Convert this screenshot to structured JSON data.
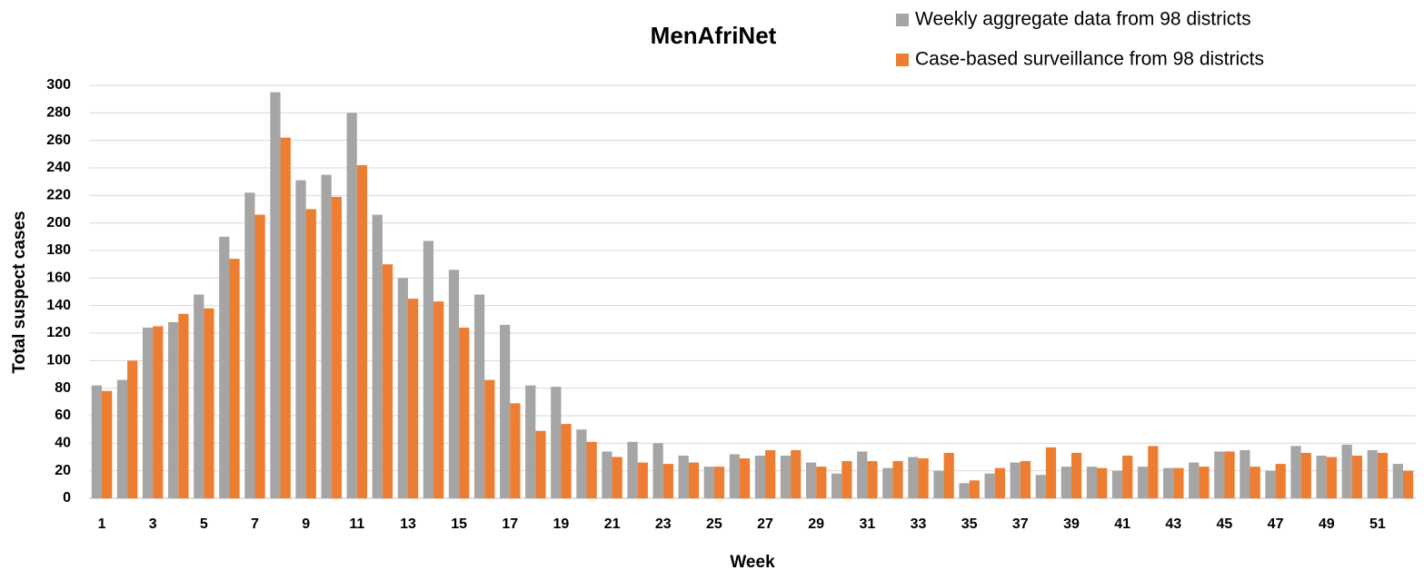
{
  "chart_data": {
    "type": "bar",
    "title": "MenAfriNet",
    "x_label": "Week",
    "y_label": "Total suspect cases",
    "categories": [
      1,
      null,
      3,
      null,
      5,
      null,
      7,
      null,
      9,
      null,
      11,
      null,
      13,
      null,
      15,
      null,
      17,
      null,
      19,
      null,
      21,
      null,
      23,
      null,
      25,
      null,
      27,
      null,
      29,
      null,
      31,
      null,
      33,
      null,
      35,
      null,
      37,
      null,
      39,
      null,
      41,
      null,
      43,
      null,
      45,
      null,
      47,
      null,
      49,
      null,
      51,
      null
    ],
    "series": [
      {
        "name": "Weekly aggregate data from 98 districts",
        "color": "#a5a5a5",
        "values": [
          82,
          86,
          124,
          128,
          148,
          190,
          222,
          295,
          231,
          235,
          280,
          206,
          160,
          187,
          166,
          148,
          126,
          82,
          81,
          50,
          34,
          41,
          40,
          31,
          23,
          32,
          31,
          31,
          26,
          18,
          34,
          22,
          30,
          20,
          11,
          18,
          26,
          17,
          23,
          23,
          20,
          23,
          22,
          26,
          34,
          35,
          20,
          38,
          31,
          39,
          35,
          25
        ]
      },
      {
        "name": "Case-based  surveillance from 98 districts",
        "color": "#ed7d31",
        "values": [
          78,
          100,
          125,
          134,
          138,
          174,
          206,
          262,
          210,
          219,
          242,
          170,
          145,
          143,
          124,
          86,
          69,
          49,
          54,
          41,
          30,
          26,
          25,
          26,
          23,
          29,
          35,
          35,
          23,
          27,
          27,
          27,
          29,
          33,
          13,
          22,
          27,
          37,
          33,
          22,
          31,
          38,
          22,
          23,
          34,
          23,
          25,
          33,
          30,
          31,
          33,
          20
        ]
      }
    ],
    "ylim": [
      0,
      300
    ],
    "yticks": [
      0,
      20,
      40,
      60,
      80,
      100,
      120,
      140,
      160,
      180,
      200,
      220,
      240,
      260,
      280,
      300
    ],
    "grid": true,
    "legend": "top-right"
  }
}
